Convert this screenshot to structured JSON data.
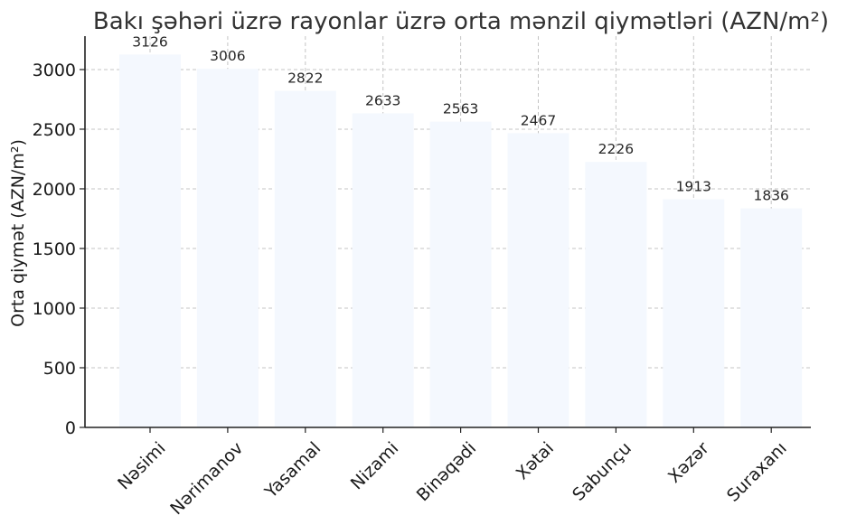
{
  "chart_data": {
    "type": "bar",
    "title": "Bakı şəhəri üzrə rayonlar üzrə orta mənzil qiymətləri (AZN/m²)",
    "xlabel": "",
    "ylabel": "Orta qiymət (AZN/m²)",
    "categories": [
      "Nəsimi",
      "Nərimanov",
      "Yasamal",
      "Nizami",
      "Binəqədi",
      "Xətai",
      "Sabunçu",
      "Xəzər",
      "Suraxanı"
    ],
    "values": [
      3126,
      3006,
      2822,
      2633,
      2563,
      2467,
      2226,
      1913,
      1836
    ],
    "ylim": [
      0,
      3280
    ],
    "yticks": [
      0,
      500,
      1000,
      1500,
      2000,
      2500,
      3000
    ],
    "grid": true,
    "bar_color": "#f4f8fe",
    "data_labels": true
  }
}
